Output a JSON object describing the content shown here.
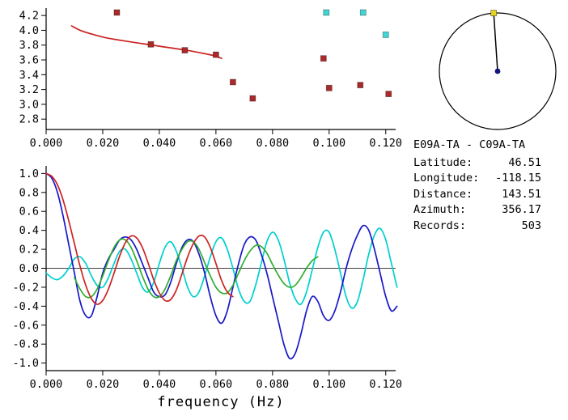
{
  "station_info": {
    "title": "E09A-TA - C09A-TA",
    "rows": [
      {
        "label": "Latitude:",
        "value": "46.51"
      },
      {
        "label": "Longitude:",
        "value": "-118.15"
      },
      {
        "label": "Distance:",
        "value": "143.51"
      },
      {
        "label": "Azimuth:",
        "value": "356.17"
      },
      {
        "label": "Records:",
        "value": "503"
      }
    ]
  },
  "azimuth_dial": {
    "azimuth_deg": 356.17,
    "tip_color": "#e8d51e",
    "center_color": "#14147e",
    "ring_color": "#000000"
  },
  "chart_data": [
    {
      "id": "dispersion",
      "type": "scatter",
      "title": "",
      "xlabel": "",
      "ylabel": "",
      "xlim": [
        0,
        0.1235
      ],
      "ylim": [
        2.66,
        4.3
      ],
      "grid": false,
      "xtick_values": [
        0.0,
        0.02,
        0.04,
        0.06,
        0.08,
        0.1,
        0.12
      ],
      "xtick_labels": [
        "0.000",
        "0.020",
        "0.040",
        "0.060",
        "0.080",
        "0.100",
        "0.120"
      ],
      "ytick_values": [
        2.8,
        3.0,
        3.2,
        3.4,
        3.6,
        3.8,
        4.0,
        4.2
      ],
      "ytick_labels": [
        "2.8",
        "3.0",
        "3.2",
        "3.4",
        "3.6",
        "3.8",
        "4.0",
        "4.2"
      ],
      "series": [
        {
          "name": "phase-velocity-curve",
          "type": "line",
          "color": "#cc2222",
          "points": [
            [
              0.009,
              4.06
            ],
            [
              0.012,
              4.0
            ],
            [
              0.016,
              3.95
            ],
            [
              0.021,
              3.9
            ],
            [
              0.027,
              3.86
            ],
            [
              0.034,
              3.82
            ],
            [
              0.041,
              3.78
            ],
            [
              0.048,
              3.74
            ],
            [
              0.054,
              3.7
            ],
            [
              0.059,
              3.66
            ],
            [
              0.062,
              3.62
            ]
          ]
        },
        {
          "name": "accepted-picks",
          "type": "scatter",
          "marker": "square",
          "color": "#aa2a2a",
          "points": [
            [
              0.025,
              4.24
            ],
            [
              0.037,
              3.81
            ],
            [
              0.049,
              3.73
            ],
            [
              0.06,
              3.67
            ],
            [
              0.066,
              3.3
            ],
            [
              0.073,
              3.08
            ],
            [
              0.098,
              3.62
            ],
            [
              0.1,
              3.22
            ],
            [
              0.111,
              3.26
            ],
            [
              0.121,
              3.14
            ]
          ]
        },
        {
          "name": "alternate-picks",
          "type": "scatter",
          "marker": "square",
          "color": "#3fd6d6",
          "points": [
            [
              0.099,
              4.24
            ],
            [
              0.112,
              4.24
            ],
            [
              0.12,
              3.94
            ]
          ]
        }
      ]
    },
    {
      "id": "waveforms",
      "type": "line",
      "title": "",
      "xlabel": "frequency (Hz)",
      "ylabel": "",
      "xlim": [
        0,
        0.1235
      ],
      "ylim": [
        -1.08,
        1.08
      ],
      "grid": false,
      "zero_line": true,
      "xtick_values": [
        0.0,
        0.02,
        0.04,
        0.06,
        0.08,
        0.1,
        0.12
      ],
      "xtick_labels": [
        "0.000",
        "0.020",
        "0.040",
        "0.060",
        "0.080",
        "0.100",
        "0.120"
      ],
      "ytick_values": [
        -1.0,
        -0.8,
        -0.6,
        -0.4,
        -0.2,
        0.0,
        0.2,
        0.4,
        0.6,
        0.8,
        1.0
      ],
      "ytick_labels": [
        "-1.0",
        "-0.8",
        "-0.6",
        "-0.4",
        "-0.2",
        "0.0",
        "0.2",
        "0.4",
        "0.6",
        "0.8",
        "1.0"
      ],
      "series": [
        {
          "name": "cyan-trace",
          "color": "#00cfcf",
          "x_start": 0.0,
          "x_step": 0.002,
          "values": [
            -0.05,
            -0.1,
            -0.12,
            -0.08,
            0.0,
            0.1,
            0.12,
            0.05,
            -0.08,
            -0.18,
            -0.2,
            -0.1,
            0.05,
            0.18,
            0.2,
            0.1,
            -0.05,
            -0.2,
            -0.25,
            -0.15,
            0.05,
            0.22,
            0.28,
            0.18,
            0.0,
            -0.2,
            -0.3,
            -0.25,
            -0.08,
            0.12,
            0.28,
            0.32,
            0.2,
            0.0,
            -0.22,
            -0.35,
            -0.35,
            -0.18,
            0.05,
            0.28,
            0.38,
            0.3,
            0.1,
            -0.15,
            -0.32,
            -0.38,
            -0.25,
            -0.02,
            0.22,
            0.38,
            0.38,
            0.2,
            -0.05,
            -0.3,
            -0.42,
            -0.35,
            -0.12,
            0.15,
            0.35,
            0.42,
            0.3,
            0.05,
            -0.2
          ]
        },
        {
          "name": "blue-trace",
          "color": "#1818c8",
          "x_start": 0.0,
          "x_step": 0.002,
          "values": [
            1.0,
            0.95,
            0.8,
            0.55,
            0.25,
            -0.05,
            -0.35,
            -0.5,
            -0.5,
            -0.3,
            -0.05,
            0.1,
            0.2,
            0.3,
            0.33,
            0.3,
            0.2,
            0.05,
            -0.1,
            -0.25,
            -0.3,
            -0.28,
            -0.15,
            0.05,
            0.22,
            0.3,
            0.28,
            0.15,
            -0.05,
            -0.3,
            -0.5,
            -0.58,
            -0.45,
            -0.2,
            0.05,
            0.25,
            0.33,
            0.3,
            0.15,
            -0.05,
            -0.3,
            -0.55,
            -0.8,
            -0.95,
            -0.9,
            -0.7,
            -0.45,
            -0.3,
            -0.35,
            -0.5,
            -0.55,
            -0.45,
            -0.25,
            0.0,
            0.2,
            0.35,
            0.45,
            0.4,
            0.2,
            -0.05,
            -0.3,
            -0.45,
            -0.4
          ]
        },
        {
          "name": "green-trace",
          "color": "#2fae2f",
          "x_start": 0.01,
          "x_step": 0.002,
          "values": [
            -0.1,
            -0.22,
            -0.3,
            -0.3,
            -0.22,
            -0.08,
            0.08,
            0.22,
            0.3,
            0.3,
            0.22,
            0.08,
            -0.08,
            -0.22,
            -0.3,
            -0.3,
            -0.22,
            -0.08,
            0.08,
            0.2,
            0.28,
            0.28,
            0.2,
            0.06,
            -0.08,
            -0.2,
            -0.26,
            -0.26,
            -0.18,
            -0.05,
            0.08,
            0.18,
            0.24,
            0.23,
            0.16,
            0.04,
            -0.07,
            -0.16,
            -0.2,
            -0.18,
            -0.1,
            0.0,
            0.08,
            0.12
          ]
        },
        {
          "name": "red-trace",
          "color": "#cc2222",
          "x_start": 0.0,
          "x_step": 0.002,
          "values": [
            1.0,
            0.97,
            0.88,
            0.72,
            0.5,
            0.26,
            0.02,
            -0.18,
            -0.32,
            -0.38,
            -0.34,
            -0.22,
            -0.05,
            0.13,
            0.27,
            0.34,
            0.32,
            0.22,
            0.06,
            -0.12,
            -0.26,
            -0.34,
            -0.33,
            -0.23,
            -0.06,
            0.12,
            0.26,
            0.34,
            0.33,
            0.22,
            0.05,
            -0.13,
            -0.25,
            -0.3
          ]
        }
      ]
    }
  ]
}
